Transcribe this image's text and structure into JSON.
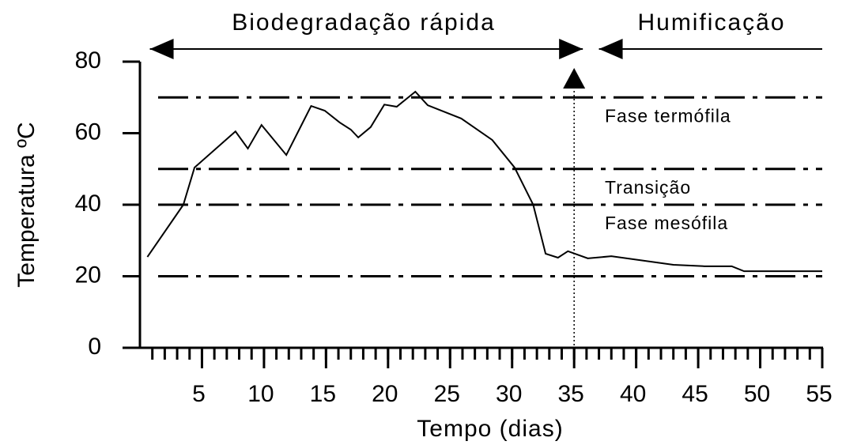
{
  "chart_data": {
    "type": "line",
    "x_label": "Tempo (dias)",
    "y_label": "Temperatura ºC",
    "xlim": [
      0,
      55
    ],
    "ylim": [
      0,
      80
    ],
    "xticks": [
      5,
      10,
      15,
      20,
      25,
      30,
      35,
      40,
      45,
      50,
      55
    ],
    "xminorticks": [
      1,
      2,
      3,
      4,
      5,
      6,
      7,
      8,
      9,
      10,
      11,
      12,
      13,
      14,
      15,
      16,
      17,
      18,
      19,
      20,
      21,
      22,
      23,
      24,
      25,
      26,
      27,
      28,
      29,
      30,
      31,
      32,
      33,
      34,
      35,
      36,
      37,
      38,
      39,
      40,
      41,
      42,
      43,
      44,
      45,
      46,
      47,
      48,
      49,
      50,
      51,
      52,
      53,
      54,
      55
    ],
    "yticks": [
      0,
      20,
      40,
      60,
      80
    ],
    "series": [
      {
        "color": "#000000",
        "x": [
          0.6,
          3.5,
          4.4,
          7.7,
          8.7,
          9.8,
          11.8,
          13.8,
          14.9,
          16.1,
          17,
          17.6,
          18.6,
          19.7,
          20.7,
          22.2,
          23.2,
          25.9,
          28.4,
          30.2,
          31.7,
          32.7,
          33.7,
          34.5,
          36.1,
          38,
          43,
          45.5,
          47.7,
          48.7,
          55
        ],
        "values": [
          25.4,
          40,
          50.4,
          60.5,
          55.7,
          62.3,
          53.9,
          67.6,
          66.3,
          63,
          61,
          58.8,
          61.7,
          68,
          67.4,
          71.6,
          67.8,
          64.1,
          58.1,
          50.4,
          40,
          26.3,
          25.2,
          27,
          25,
          25.6,
          23.2,
          22.8,
          22.8,
          21.4,
          21.4
        ]
      }
    ],
    "reference_lines": [
      70,
      50,
      40,
      20
    ],
    "zones": [
      {
        "label": "Fase termófila",
        "range": [
          50,
          70
        ]
      },
      {
        "label": "Transição",
        "range": [
          40,
          50
        ]
      },
      {
        "label": "Fase mesófila",
        "range": [
          20,
          40
        ]
      }
    ],
    "vline": 35,
    "phases": [
      {
        "label": "Biodegradação rápida",
        "from": 0.8,
        "to": 35.7
      },
      {
        "label": "Humificação",
        "from": 37,
        "to": 55
      }
    ]
  }
}
